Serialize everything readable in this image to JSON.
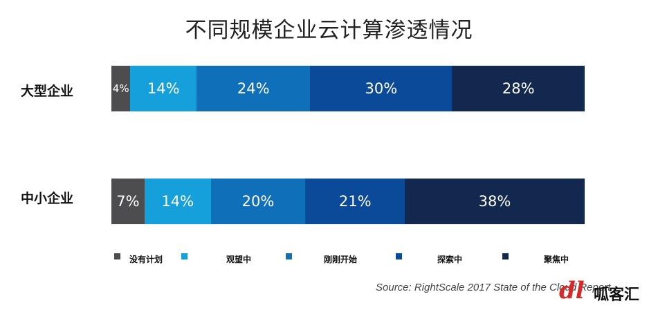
{
  "chart_data": {
    "type": "bar",
    "orientation": "horizontal",
    "stacked": true,
    "title": "不同规模企业云计算渗透情况",
    "categories": [
      "大型企业",
      "中小企业"
    ],
    "series": [
      {
        "name": "没有计划",
        "values": [
          4,
          7
        ],
        "labels": [
          "4%",
          "7%"
        ],
        "color": "#4d4d4f"
      },
      {
        "name": "观望中",
        "values": [
          14,
          14
        ],
        "labels": [
          "14%",
          "14%"
        ],
        "color": "#16a0db"
      },
      {
        "name": "刚刚开始",
        "values": [
          24,
          20
        ],
        "labels": [
          "24%",
          "20%"
        ],
        "color": "#0f6fb8"
      },
      {
        "name": "探索中",
        "values": [
          30,
          21
        ],
        "labels": [
          "30%",
          "21%"
        ],
        "color": "#0b4a98"
      },
      {
        "name": "聚焦中",
        "values": [
          28,
          38
        ],
        "labels": [
          "28%",
          "38%"
        ],
        "color": "#13284f"
      }
    ],
    "legend_position": "bottom",
    "source": "Source: RightScale 2017 State of the Cloud Report"
  },
  "legend_labels": [
    "没有计划",
    "观望中",
    "刚刚开始",
    "探索中",
    "聚焦中"
  ],
  "watermark": {
    "logo": "dl",
    "text": "呱客汇"
  }
}
